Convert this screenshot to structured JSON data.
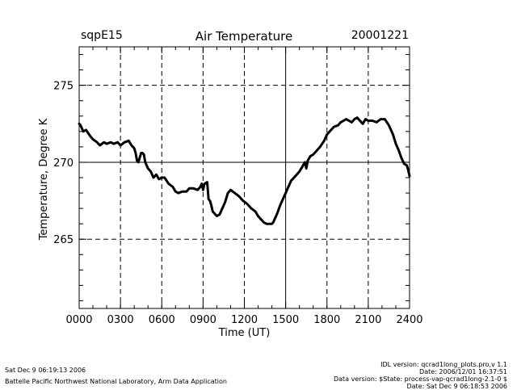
{
  "header": {
    "station": "sqpE15",
    "title": "Air Temperature",
    "date": "20001221"
  },
  "footer": {
    "left_line1": "Sat Dec  9 06:19:13 2006",
    "left_line2": "Battelle Pacific Northwest National Laboratory, Arm Data Application",
    "right_lines": [
      "IDL version: qcrad1long_plots.pro,v 1.1",
      "Date: 2006/12/01 16:37:51",
      "Data version: $State: process-vap-qcrad1long-2.1-0 $",
      "Date: Sat Dec  9 06:18:53 2006"
    ]
  },
  "chart_data": {
    "type": "line",
    "title": "Air Temperature",
    "xlabel": "Time (UT)",
    "ylabel": "Temperature, Degree K",
    "xlim": [
      0,
      2400
    ],
    "ylim": [
      260.5,
      277.5
    ],
    "x_tick_labels": [
      "0000",
      "0300",
      "0600",
      "0900",
      "1200",
      "1500",
      "1800",
      "2100",
      "2400"
    ],
    "x_ticks": [
      0,
      300,
      600,
      900,
      1200,
      1500,
      1800,
      2100,
      2400
    ],
    "y_tick_labels": [
      "265",
      "270",
      "275"
    ],
    "y_ticks": [
      265,
      270,
      275
    ],
    "dashed_vertical_lines": [
      300,
      600,
      900,
      1200,
      1800,
      2100
    ],
    "solid_vertical_lines": [
      1500
    ],
    "dashed_horizontal_lines": [
      265,
      275
    ],
    "solid_horizontal_lines": [
      270
    ],
    "series": [
      {
        "x": [
          0,
          10,
          30,
          50,
          80,
          100,
          130,
          150,
          180,
          200,
          230,
          250,
          280,
          300,
          330,
          360,
          380,
          400,
          410,
          420,
          430,
          440,
          450,
          460,
          470,
          480,
          500,
          520,
          540,
          560,
          580,
          600,
          620,
          650,
          680,
          700,
          720,
          750,
          780,
          800,
          830,
          860,
          880,
          890,
          900,
          910,
          930,
          940,
          950,
          960,
          970,
          980,
          990,
          1000,
          1020,
          1040,
          1060,
          1080,
          1100,
          1130,
          1160,
          1190,
          1220,
          1250,
          1280,
          1300,
          1320,
          1340,
          1360,
          1380,
          1400,
          1410,
          1420,
          1440,
          1460,
          1480,
          1500,
          1520,
          1540,
          1560,
          1580,
          1600,
          1620,
          1640,
          1650,
          1660,
          1680,
          1700,
          1720,
          1750,
          1780,
          1800,
          1820,
          1850,
          1880,
          1900,
          1920,
          1940,
          1960,
          1980,
          2000,
          2020,
          2040,
          2060,
          2080,
          2100,
          2130,
          2160,
          2190,
          2220,
          2250,
          2280,
          2300,
          2320,
          2340,
          2360,
          2380,
          2390,
          2400
        ],
        "y": [
          272.5,
          272.4,
          272.0,
          272.1,
          271.7,
          271.5,
          271.3,
          271.1,
          271.3,
          271.2,
          271.3,
          271.2,
          271.3,
          271.1,
          271.3,
          271.4,
          271.1,
          270.9,
          270.6,
          270.1,
          270.0,
          270.3,
          270.6,
          270.6,
          270.5,
          270.0,
          269.6,
          269.4,
          269.0,
          269.2,
          268.9,
          269.0,
          269.0,
          268.6,
          268.4,
          268.1,
          268.0,
          268.1,
          268.1,
          268.3,
          268.3,
          268.2,
          268.4,
          268.6,
          268.2,
          268.6,
          268.7,
          267.6,
          267.5,
          267.2,
          266.8,
          266.7,
          266.6,
          266.5,
          266.6,
          267.0,
          267.4,
          268.0,
          268.2,
          268.0,
          267.8,
          267.5,
          267.3,
          267.0,
          266.8,
          266.5,
          266.3,
          266.1,
          266.0,
          266.0,
          266.0,
          266.1,
          266.3,
          266.7,
          267.2,
          267.6,
          268.0,
          268.4,
          268.8,
          269.0,
          269.2,
          269.4,
          269.7,
          270.0,
          269.6,
          270.1,
          270.4,
          270.5,
          270.7,
          271.0,
          271.4,
          271.8,
          272.0,
          272.3,
          272.4,
          272.6,
          272.7,
          272.8,
          272.7,
          272.6,
          272.8,
          272.9,
          272.7,
          272.5,
          272.8,
          272.7,
          272.7,
          272.6,
          272.8,
          272.8,
          272.4,
          271.8,
          271.2,
          270.8,
          270.3,
          269.9,
          269.8,
          269.5,
          269.1
        ]
      }
    ]
  }
}
